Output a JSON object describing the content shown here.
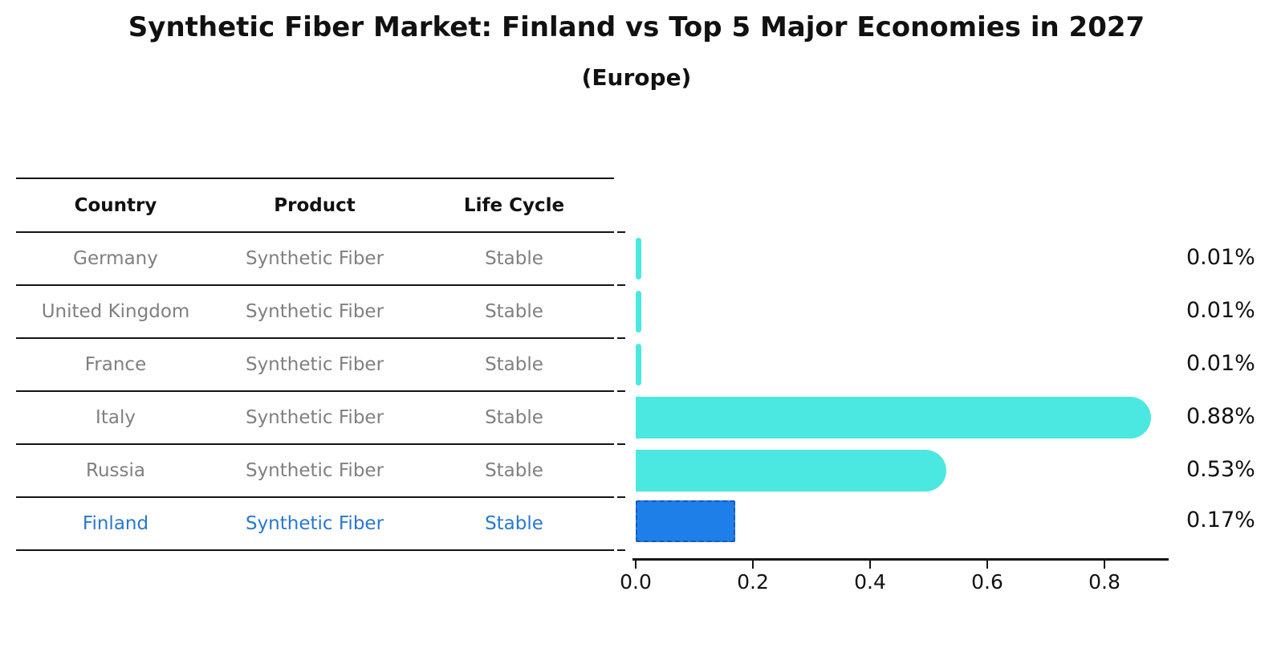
{
  "title": "Synthetic Fiber Market: Finland vs Top 5 Major Economies in 2027",
  "subtitle": "(Europe)",
  "table": {
    "headers": {
      "country": "Country",
      "product": "Product",
      "life_cycle": "Life Cycle"
    },
    "rows": [
      {
        "country": "Germany",
        "product": "Synthetic Fiber",
        "life_cycle": "Stable"
      },
      {
        "country": "United Kingdom",
        "product": "Synthetic Fiber",
        "life_cycle": "Stable"
      },
      {
        "country": "France",
        "product": "Synthetic Fiber",
        "life_cycle": "Stable"
      },
      {
        "country": "Italy",
        "product": "Synthetic Fiber",
        "life_cycle": "Stable"
      },
      {
        "country": "Russia",
        "product": "Synthetic Fiber",
        "life_cycle": "Stable"
      },
      {
        "country": "Finland",
        "product": "Synthetic Fiber",
        "life_cycle": "Stable"
      }
    ]
  },
  "chart_data": {
    "type": "bar",
    "orientation": "horizontal",
    "categories": [
      "Germany",
      "United Kingdom",
      "France",
      "Italy",
      "Russia",
      "Finland"
    ],
    "values": [
      0.01,
      0.01,
      0.01,
      0.88,
      0.53,
      0.17
    ],
    "value_labels": [
      "0.01%",
      "0.01%",
      "0.01%",
      "0.88%",
      "0.53%",
      "0.17%"
    ],
    "x_ticks": [
      "0.0",
      "0.2",
      "0.4",
      "0.6",
      "0.8"
    ],
    "xlim": [
      0.0,
      0.91
    ],
    "grid": false,
    "legend": "none",
    "highlight_category": "Finland",
    "colors": {
      "default_bar": "#4BE8E1",
      "highlight_bar": "#1F7FE8",
      "highlight_border": "#1559C8",
      "row_text": "#808080",
      "highlight_text": "#2878D0",
      "header_text": "#111111"
    }
  }
}
